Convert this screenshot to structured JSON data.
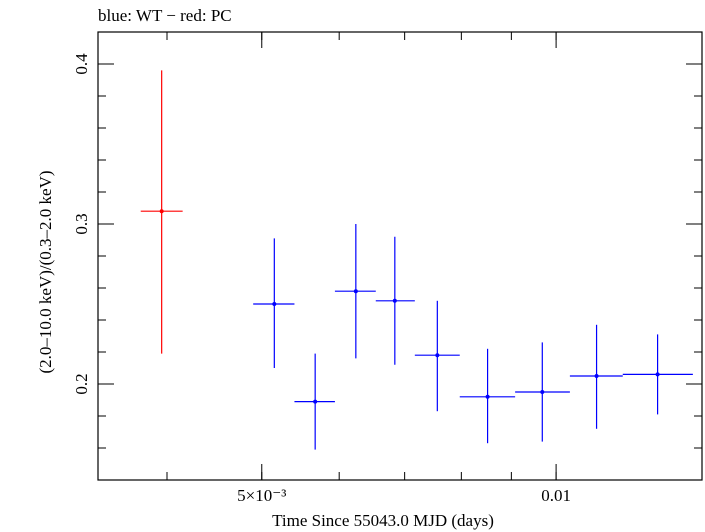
{
  "chart_data": {
    "type": "scatter",
    "title": "blue: WT − red: PC",
    "xlabel": "Time Since 55043.0 MJD (days)",
    "ylabel": "(2.0–10.0 keV)/(0.3–2.0 keV)",
    "x_scale": "log",
    "xlim": [
      0.0034,
      0.0141
    ],
    "ylim": [
      0.14,
      0.42
    ],
    "x_ticks": [
      {
        "value": 0.005,
        "label": "5×10⁻³"
      },
      {
        "value": 0.01,
        "label": "0.01"
      }
    ],
    "y_ticks": [
      {
        "value": 0.2,
        "label": "0.2"
      },
      {
        "value": 0.3,
        "label": "0.3"
      },
      {
        "value": 0.4,
        "label": "0.4"
      }
    ],
    "grid": false,
    "series": [
      {
        "name": "PC",
        "color": "#ff0000",
        "points": [
          {
            "x": 0.00395,
            "xlo": 0.00376,
            "xhi": 0.00415,
            "y": 0.308,
            "ylo": 0.219,
            "yhi": 0.396
          }
        ]
      },
      {
        "name": "WT",
        "color": "#0000ff",
        "points": [
          {
            "x": 0.00515,
            "xlo": 0.0049,
            "xhi": 0.0054,
            "y": 0.25,
            "ylo": 0.21,
            "yhi": 0.291
          },
          {
            "x": 0.00567,
            "xlo": 0.0054,
            "xhi": 0.00594,
            "y": 0.189,
            "ylo": 0.159,
            "yhi": 0.219
          },
          {
            "x": 0.00624,
            "xlo": 0.00594,
            "xhi": 0.00654,
            "y": 0.258,
            "ylo": 0.216,
            "yhi": 0.3
          },
          {
            "x": 0.00684,
            "xlo": 0.00654,
            "xhi": 0.00717,
            "y": 0.252,
            "ylo": 0.212,
            "yhi": 0.292
          },
          {
            "x": 0.00756,
            "xlo": 0.00717,
            "xhi": 0.00797,
            "y": 0.218,
            "ylo": 0.183,
            "yhi": 0.252
          },
          {
            "x": 0.00851,
            "xlo": 0.00797,
            "xhi": 0.00908,
            "y": 0.192,
            "ylo": 0.163,
            "yhi": 0.222
          },
          {
            "x": 0.00968,
            "xlo": 0.00908,
            "xhi": 0.01033,
            "y": 0.195,
            "ylo": 0.164,
            "yhi": 0.226
          },
          {
            "x": 0.011,
            "xlo": 0.01033,
            "xhi": 0.0117,
            "y": 0.205,
            "ylo": 0.172,
            "yhi": 0.237
          },
          {
            "x": 0.0127,
            "xlo": 0.0117,
            "xhi": 0.0138,
            "y": 0.206,
            "ylo": 0.181,
            "yhi": 0.231
          }
        ]
      }
    ]
  }
}
